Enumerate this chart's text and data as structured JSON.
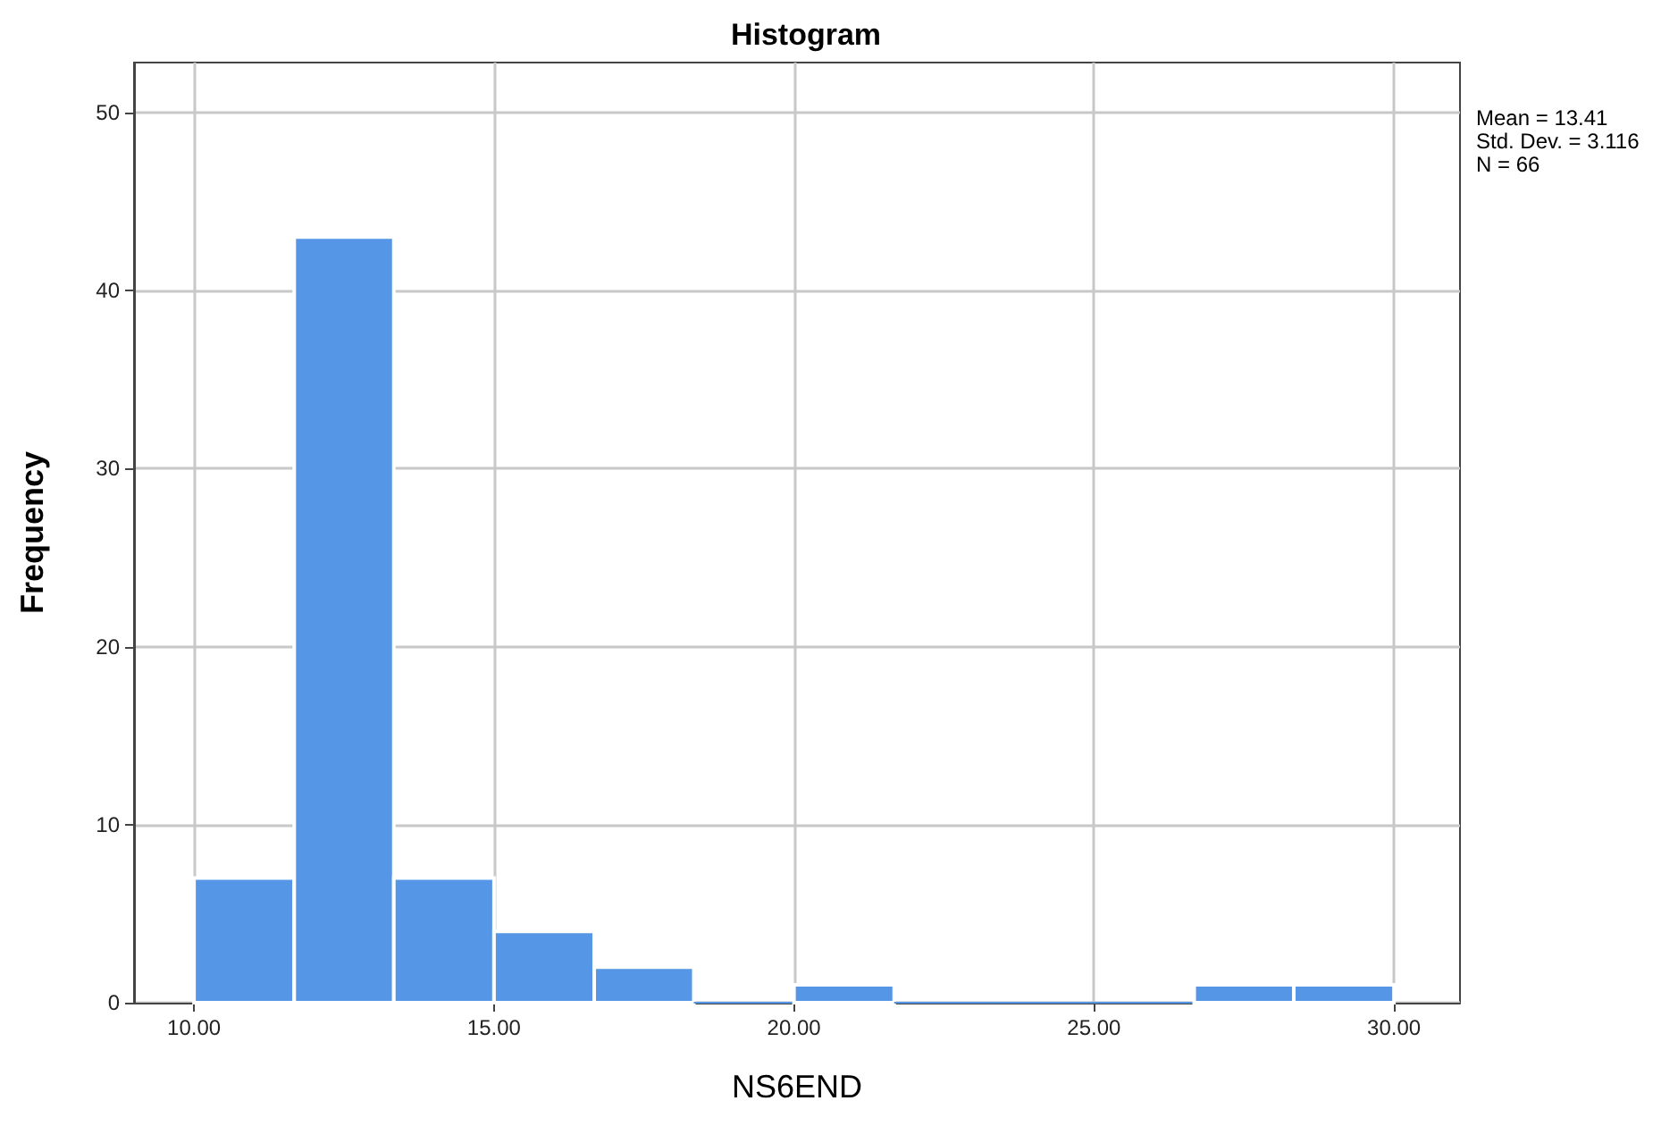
{
  "chart_data": {
    "type": "histogram",
    "title": "Histogram",
    "xlabel": "NS6END",
    "ylabel": "Frequency",
    "bins": [
      10,
      11.67,
      13.33,
      15,
      16.67,
      18.33,
      20,
      21.67,
      23.33,
      25,
      26.67,
      28.33,
      30
    ],
    "values": [
      7,
      43,
      7,
      4,
      2,
      0,
      1,
      0,
      0,
      0,
      1,
      1
    ],
    "color": "#5596e6",
    "xlim": [
      9,
      31.1
    ],
    "xticks": [
      {
        "value": 10,
        "label": "10.00"
      },
      {
        "value": 15,
        "label": "15.00"
      },
      {
        "value": 20,
        "label": "20.00"
      },
      {
        "value": 25,
        "label": "25.00"
      },
      {
        "value": 30,
        "label": "30.00"
      }
    ],
    "ylim": [
      0,
      52.8
    ],
    "yticks": [
      0,
      10,
      20,
      30,
      40,
      50
    ],
    "grid": true,
    "annotations": [
      "Mean = 13.41",
      "Std. Dev. = 3.116",
      "N = 66"
    ]
  }
}
